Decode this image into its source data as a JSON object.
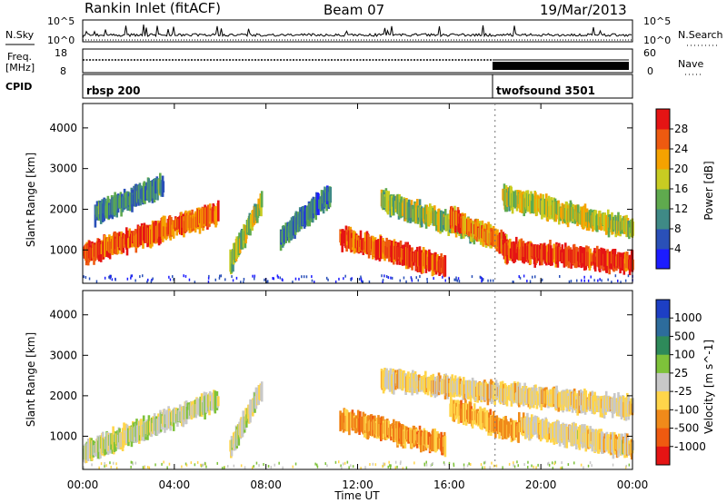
{
  "header": {
    "station": "Rankin Inlet (fitACF)",
    "beam": "Beam 07",
    "date": "19/Mar/2013"
  },
  "strips": {
    "nsky_label": "N.Sky",
    "nsky_ticks": [
      "10^5",
      "10^0"
    ],
    "nsearch_label": "N.Search",
    "nsearch_ticks": [
      "10^5",
      "10^0"
    ],
    "freq_label_1": "Freq.",
    "freq_label_2": "[MHz]",
    "freq_ticks": [
      "18",
      "8"
    ],
    "nave_label": "Nave",
    "nave_ticks": [
      "60",
      "0"
    ],
    "cpid_label": "CPID",
    "cpid_segments": [
      {
        "label": "rbsp 200",
        "start_hour": 0,
        "end_hour": 18
      },
      {
        "label": "twofsound 3501",
        "start_hour": 18,
        "end_hour": 24
      }
    ]
  },
  "chart_data": [
    {
      "type": "heatmap",
      "title": "",
      "ylabel": "Slant Range [km]",
      "xlabel": "Time UT",
      "xlim_hours": [
        0,
        24
      ],
      "ylim": [
        180,
        4600
      ],
      "yticks": [
        1000,
        2000,
        3000,
        4000
      ],
      "xticks": [
        "00:00",
        "04:00",
        "08:00",
        "12:00",
        "16:00",
        "20:00",
        "00:00"
      ],
      "colorbar": {
        "label": "Power [dB]",
        "ticks": [
          "4",
          "8",
          "12",
          "16",
          "20",
          "24",
          "28"
        ],
        "colors": [
          "#1c1cff",
          "#2a50b8",
          "#3f8a86",
          "#5faa4e",
          "#c8cc22",
          "#f5a200",
          "#ee5a10",
          "#e51414"
        ]
      },
      "echo_bands": [
        {
          "t_start": 0.0,
          "t_end": 5.9,
          "r_start": 900,
          "r_end": 1900,
          "level": 0.9
        },
        {
          "t_start": 0.5,
          "t_end": 3.5,
          "r_start": 1900,
          "r_end": 2600,
          "level": 0.35
        },
        {
          "t_start": 6.4,
          "t_end": 7.8,
          "r_start": 700,
          "r_end": 2200,
          "level": 0.55
        },
        {
          "t_start": 8.6,
          "t_end": 10.8,
          "r_start": 1300,
          "r_end": 2400,
          "level": 0.3
        },
        {
          "t_start": 11.2,
          "t_end": 15.8,
          "r_start": 1300,
          "r_end": 600,
          "level": 0.95
        },
        {
          "t_start": 13.0,
          "t_end": 17.9,
          "r_start": 2200,
          "r_end": 1300,
          "level": 0.55
        },
        {
          "t_start": 16.0,
          "t_end": 18.5,
          "r_start": 1800,
          "r_end": 1100,
          "level": 0.85
        },
        {
          "t_start": 18.3,
          "t_end": 24.0,
          "r_start": 1000,
          "r_end": 700,
          "level": 1.0
        },
        {
          "t_start": 18.3,
          "t_end": 24.0,
          "r_start": 2300,
          "r_end": 1500,
          "level": 0.6
        }
      ]
    },
    {
      "type": "heatmap",
      "title": "",
      "ylabel": "Slant Range [km]",
      "xlabel": "Time UT",
      "xlim_hours": [
        0,
        24
      ],
      "ylim": [
        180,
        4600
      ],
      "yticks": [
        1000,
        2000,
        3000,
        4000
      ],
      "xticks": [
        "00:00",
        "04:00",
        "08:00",
        "12:00",
        "16:00",
        "20:00",
        "00:00"
      ],
      "colorbar": {
        "label": "Velocity [m s^-1]",
        "ticks": [
          "1000",
          "500",
          "100",
          "25",
          "-25",
          "-100",
          "-500",
          "-1000"
        ],
        "colors": [
          "#1d3fc4",
          "#2d6c9c",
          "#2e8a5a",
          "#7ec23a",
          "#c8c8c8",
          "#ffd54a",
          "#f08a1a",
          "#ef5a10",
          "#e51414"
        ]
      },
      "echo_bands": [
        {
          "t_start": 0.0,
          "t_end": 5.9,
          "r_start": 600,
          "r_end": 1900,
          "level": 0.25
        },
        {
          "t_start": 6.4,
          "t_end": 7.8,
          "r_start": 700,
          "r_end": 2200,
          "level": 0.3
        },
        {
          "t_start": 11.2,
          "t_end": 15.8,
          "r_start": 1400,
          "r_end": 800,
          "level": 0.8
        },
        {
          "t_start": 13.0,
          "t_end": 24.0,
          "r_start": 2400,
          "r_end": 1700,
          "level": 0.5
        },
        {
          "t_start": 16.0,
          "t_end": 19.0,
          "r_start": 1700,
          "r_end": 1100,
          "level": 0.75
        },
        {
          "t_start": 19.0,
          "t_end": 24.0,
          "r_start": 1300,
          "r_end": 700,
          "level": 0.45
        }
      ]
    }
  ]
}
